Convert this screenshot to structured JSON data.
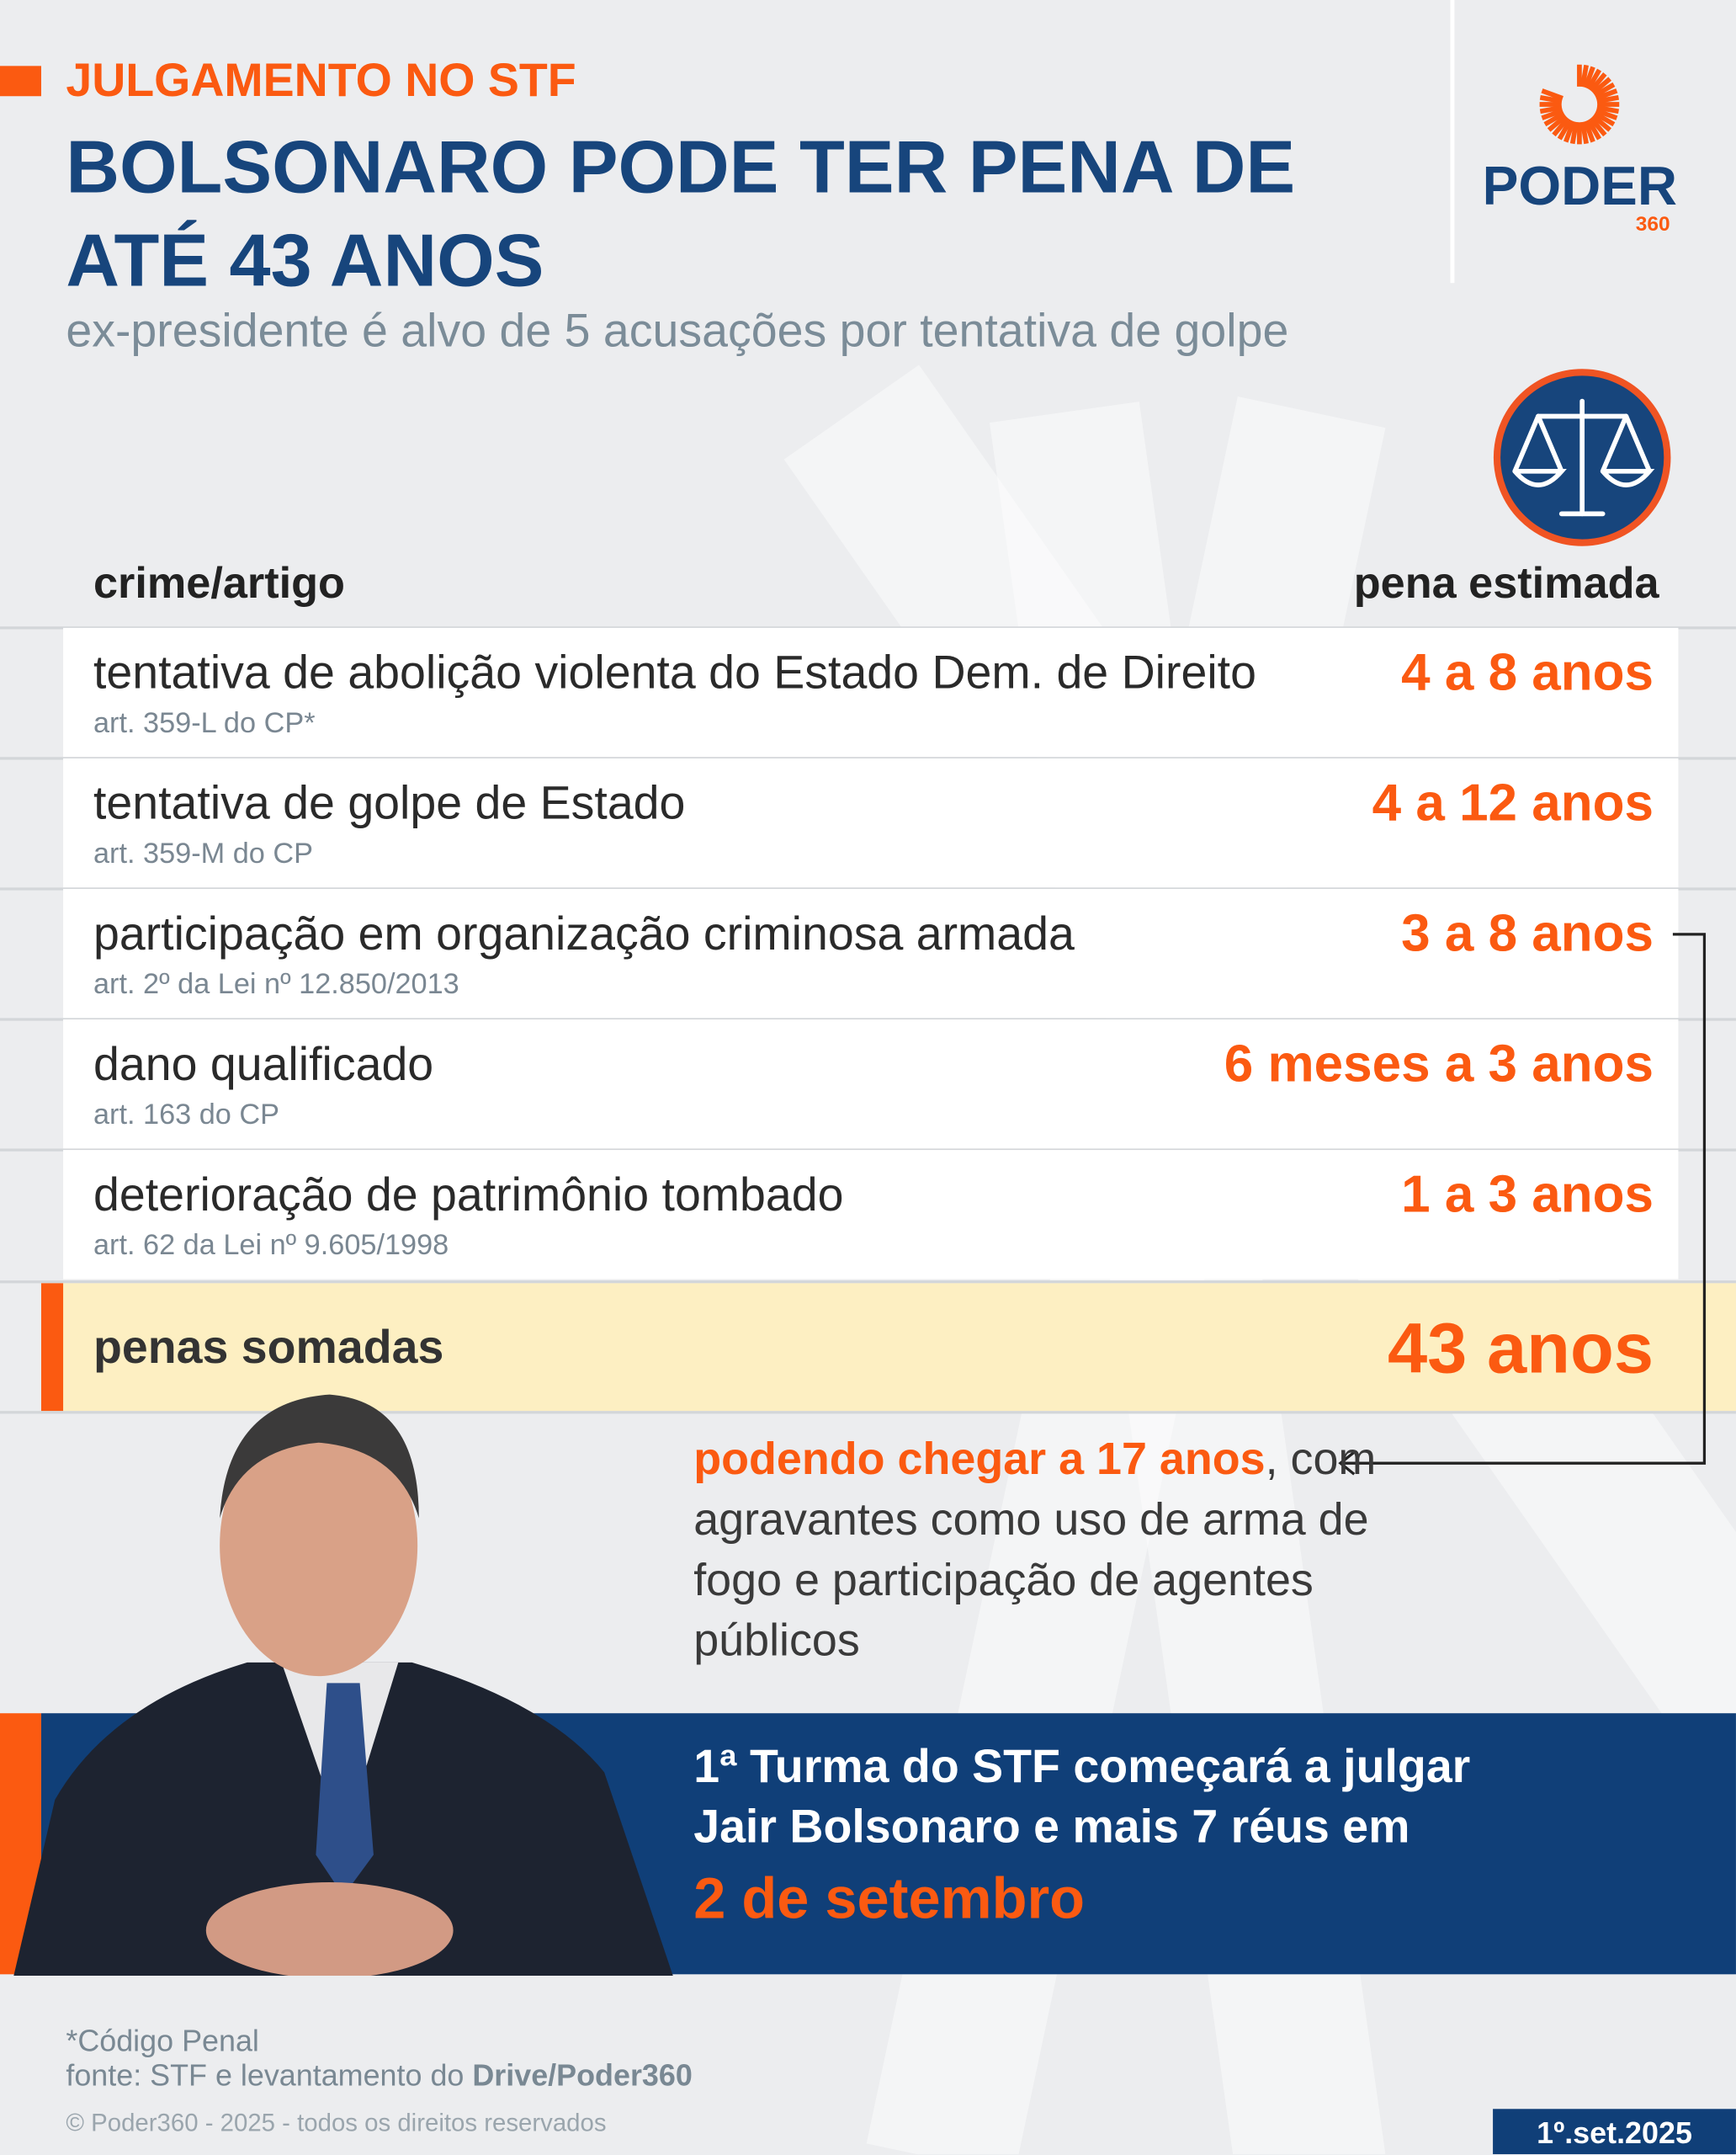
{
  "header": {
    "kicker": "JULGAMENTO NO STF",
    "title_line1": "BOLSONARO PODE TER PENA DE",
    "title_line2": "ATÉ 43 ANOS",
    "subtitle": "ex-presidente é alvo de 5 acusações por tentativa de golpe"
  },
  "logo": {
    "text": "PODER",
    "number": "360"
  },
  "colors": {
    "orange": "#fb5a11",
    "navy": "#103f78",
    "highlight": "#fdefc2"
  },
  "table": {
    "col_crime": "crime/artigo",
    "col_pena": "pena estimada",
    "rows": [
      {
        "crime": "tentativa de abolição violenta do Estado Dem. de Direito",
        "article": "art. 359-L do CP*",
        "pena": "4 a 8 anos"
      },
      {
        "crime": "tentativa de golpe de Estado",
        "article": "art. 359-M do CP",
        "pena": "4 a 12 anos"
      },
      {
        "crime": "participação em organização criminosa armada",
        "article": "art. 2º da Lei nº 12.850/2013",
        "pena": "3 a 8 anos"
      },
      {
        "crime": "dano qualificado",
        "article": "art. 163 do CP",
        "pena": "6 meses a 3 anos"
      },
      {
        "crime": "deterioração de patrimônio tombado",
        "article": "art. 62 da Lei nº 9.605/1998",
        "pena": "1 a 3 anos"
      }
    ],
    "total_label": "penas somadas",
    "total_value": "43 anos"
  },
  "note": {
    "highlight": "podendo chegar a 17 anos",
    "rest": ", com agravantes como uso de arma de fogo e participação de agentes públicos"
  },
  "banner": {
    "line1": "1ª Turma do STF começará a julgar",
    "line2": "Jair Bolsonaro e mais 7 réus em",
    "date": "2 de setembro"
  },
  "footer": {
    "footnote": "*Código Penal",
    "source_prefix": "fonte: STF e levantamento do ",
    "source_bold": "Drive/Poder360",
    "copyright": "© Poder360 - 2025 - todos os direitos reservados",
    "date": "1º.set.2025"
  }
}
